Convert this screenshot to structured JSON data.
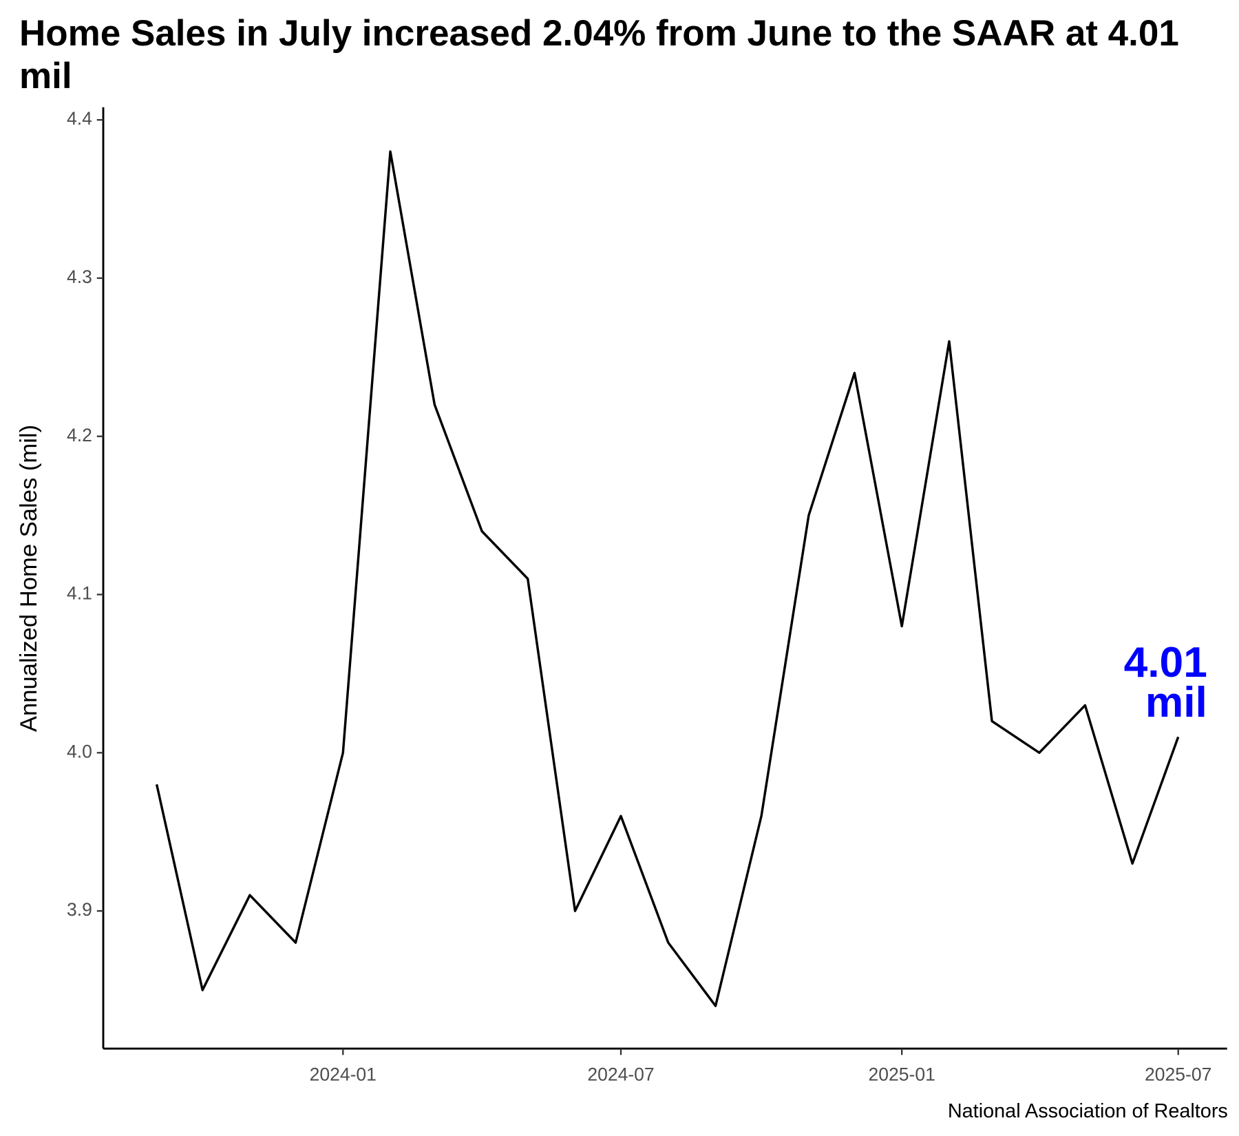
{
  "chart_data": {
    "type": "line",
    "title": "Home Sales in July increased 2.04% from June to the SAAR at 4.01 mil",
    "y_label": "Annualized Home Sales (mil)",
    "caption": "National Association of Realtors",
    "x": [
      "2023-09",
      "2023-10",
      "2023-11",
      "2023-12",
      "2024-01",
      "2024-02",
      "2024-03",
      "2024-04",
      "2024-05",
      "2024-06",
      "2024-07",
      "2024-08",
      "2024-09",
      "2024-10",
      "2024-11",
      "2024-12",
      "2025-01",
      "2025-02",
      "2025-03",
      "2025-04",
      "2025-05",
      "2025-06",
      "2025-07"
    ],
    "series": [
      {
        "name": "Annualized Home Sales",
        "color": "#000000",
        "values": [
          3.98,
          3.85,
          3.91,
          3.88,
          4.0,
          4.38,
          4.22,
          4.14,
          4.11,
          3.9,
          3.96,
          3.88,
          3.84,
          3.96,
          4.15,
          4.24,
          4.08,
          4.26,
          4.02,
          4.0,
          4.03,
          3.93,
          4.01
        ]
      }
    ],
    "xlim": [
      "2023-07-28",
      "2025-08-02"
    ],
    "xticks": [
      "2024-01",
      "2024-07",
      "2025-01",
      "2025-07"
    ],
    "ylim": [
      3.813,
      4.408
    ],
    "yticks": [
      {
        "value": 3.9,
        "label": "3.9"
      },
      {
        "value": 4.0,
        "label": "4.0"
      },
      {
        "value": 4.1,
        "label": "4.1"
      },
      {
        "value": 4.2,
        "label": "4.2"
      },
      {
        "value": 4.3,
        "label": "4.3"
      },
      {
        "value": 4.4,
        "label": "4.4"
      }
    ],
    "grid": false,
    "annotation": {
      "lines": [
        "4.01",
        "mil"
      ],
      "color": "#0000ff"
    }
  }
}
